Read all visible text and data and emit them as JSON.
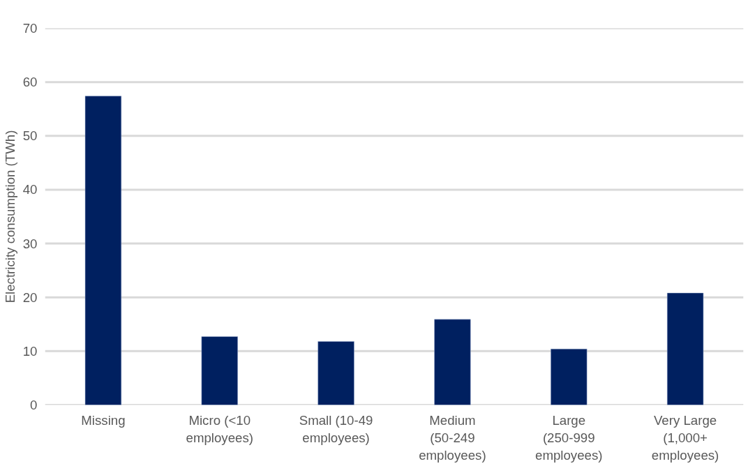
{
  "chart_data": {
    "type": "bar",
    "ylabel": "Electricity consumption (TWh)",
    "categories": [
      "Missing",
      "Micro (<10 employees)",
      "Small (10-49 employees)",
      "Medium (50-249 employees)",
      "Large (250-999 employees)",
      "Very Large (1,000+ employees)"
    ],
    "values": [
      57.4,
      12.7,
      11.8,
      15.9,
      10.4,
      20.8
    ],
    "color": "#002060",
    "ylim": [
      0,
      70
    ],
    "yticks": [
      0,
      10,
      20,
      30,
      40,
      50,
      60,
      70
    ],
    "grid": "y"
  }
}
